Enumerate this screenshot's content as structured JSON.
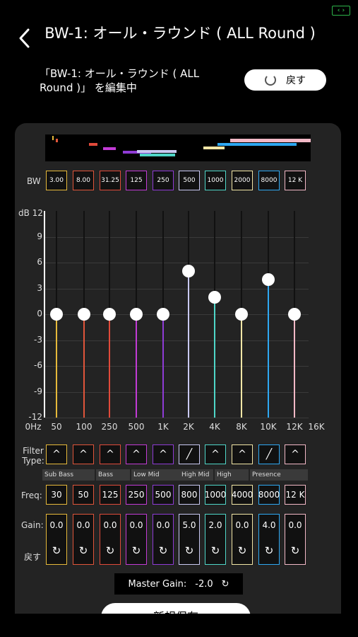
{
  "header": {
    "title": "BW-1: オール・ラウンド ( ALL Round )",
    "subtitle": "「BW-1: オール・ラウンド ( ALL Round )」 を編集中",
    "reset_label": "戻す"
  },
  "labels": {
    "bw": "BW",
    "filter_type": "Filter Type:",
    "freq": "Freq:",
    "gain": "Gain:",
    "reset": "戻す",
    "y_axis_top": "dB 12"
  },
  "bands": [
    {
      "color": "#e6b93a",
      "bw": "3.00",
      "freq": "30",
      "gain": "0.0",
      "filter": "peak"
    },
    {
      "color": "#e0553a",
      "bw": "8.00",
      "freq": "50",
      "gain": "0.0",
      "filter": "peak"
    },
    {
      "color": "#e04a3a",
      "bw": "31.25",
      "freq": "125",
      "gain": "0.0",
      "filter": "peak"
    },
    {
      "color": "#c23bd6",
      "bw": "125",
      "freq": "250",
      "gain": "0.0",
      "filter": "peak"
    },
    {
      "color": "#8f3bd6",
      "bw": "250",
      "freq": "500",
      "gain": "0.0",
      "filter": "peak"
    },
    {
      "color": "#c9c9f2",
      "bw": "500",
      "freq": "800",
      "gain": "5.0",
      "filter": "shelf"
    },
    {
      "color": "#4fd6c8",
      "bw": "1000",
      "freq": "1000",
      "gain": "2.0",
      "filter": "peak"
    },
    {
      "color": "#f2e6a6",
      "bw": "2000",
      "freq": "4000",
      "gain": "0.0",
      "filter": "peak"
    },
    {
      "color": "#2ea8f2",
      "bw": "8000",
      "freq": "8000",
      "gain": "4.0",
      "filter": "shelf"
    },
    {
      "color": "#f2b8c6",
      "bw": "12 K",
      "freq": "12 K",
      "gain": "0.0",
      "filter": "peak"
    }
  ],
  "x_ticks": [
    "0Hz",
    "50",
    "100",
    "250",
    "500",
    "1K",
    "2K",
    "4K",
    "8K",
    "10K",
    "12K",
    "16K"
  ],
  "y_ticks": [
    "9",
    "6",
    "3",
    "0",
    "-3",
    "-6",
    "-9",
    "-12"
  ],
  "groups": [
    "Sub Bass",
    "Bass",
    "Low Mid",
    "High Mid",
    "High",
    "Presence"
  ],
  "master": {
    "label": "Master Gain:",
    "value": "-2.0"
  },
  "save_label": "新規保存"
}
